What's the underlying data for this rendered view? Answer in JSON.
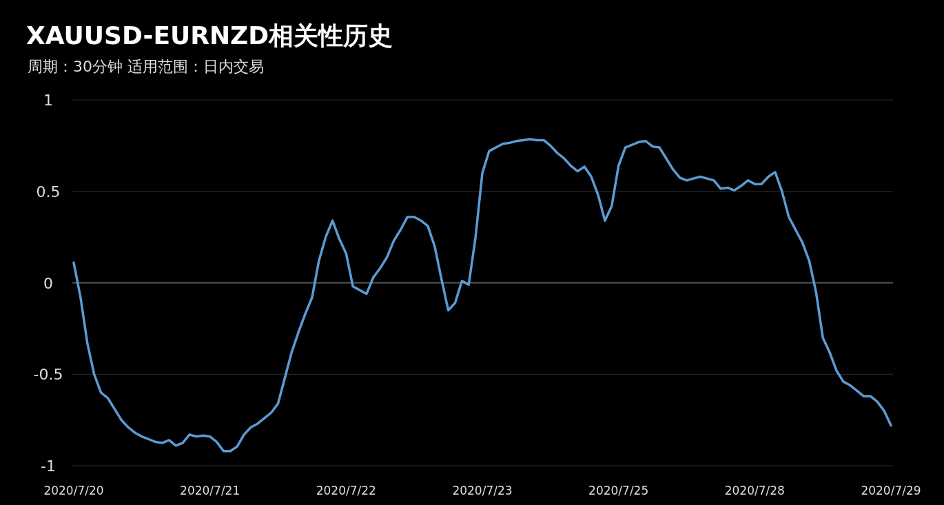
{
  "chart_data": {
    "type": "line",
    "title": "XAUUSD-EURNZD相关性历史",
    "subtitle": "周期：30分钟  适用范围：日内交易",
    "categories": [
      "2020/7/20",
      null,
      null,
      null,
      null,
      null,
      null,
      null,
      null,
      null,
      null,
      null,
      null,
      null,
      null,
      null,
      null,
      null,
      null,
      null,
      "2020/7/21",
      null,
      null,
      null,
      null,
      null,
      null,
      null,
      null,
      null,
      null,
      null,
      null,
      null,
      null,
      null,
      null,
      null,
      null,
      null,
      "2020/7/22",
      null,
      null,
      null,
      null,
      null,
      null,
      null,
      null,
      null,
      null,
      null,
      null,
      null,
      null,
      null,
      null,
      null,
      null,
      null,
      "2020/7/23",
      null,
      null,
      null,
      null,
      null,
      null,
      null,
      null,
      null,
      null,
      null,
      null,
      null,
      null,
      null,
      null,
      null,
      null,
      null,
      "2020/7/25",
      null,
      null,
      null,
      null,
      null,
      null,
      null,
      null,
      null,
      null,
      null,
      null,
      null,
      null,
      null,
      null,
      null,
      null,
      null,
      "2020/7/28",
      null,
      null,
      null,
      null,
      null,
      null,
      null,
      null,
      null,
      null,
      null,
      null,
      null,
      null,
      null,
      null,
      null,
      null,
      null,
      "2020/7/29"
    ],
    "series": [
      {
        "color": "#5b9bd5",
        "values": [
          0.11,
          -0.08,
          -0.33,
          -0.5,
          -0.6,
          -0.63,
          -0.69,
          -0.75,
          -0.79,
          -0.82,
          -0.84,
          -0.855,
          -0.87,
          -0.875,
          -0.86,
          -0.89,
          -0.875,
          -0.83,
          -0.84,
          -0.835,
          -0.84,
          -0.87,
          -0.92,
          -0.92,
          -0.895,
          -0.83,
          -0.79,
          -0.77,
          -0.74,
          -0.71,
          -0.66,
          -0.52,
          -0.38,
          -0.27,
          -0.17,
          -0.08,
          0.12,
          0.25,
          0.34,
          0.24,
          0.16,
          -0.02,
          -0.04,
          -0.06,
          0.03,
          0.08,
          0.14,
          0.23,
          0.29,
          0.36,
          0.36,
          0.34,
          0.31,
          0.2,
          0.02,
          -0.15,
          -0.11,
          0.01,
          -0.01,
          0.25,
          0.6,
          0.72,
          0.74,
          0.76,
          0.765,
          0.775,
          0.78,
          0.785,
          0.78,
          0.78,
          0.75,
          0.71,
          0.68,
          0.64,
          0.61,
          0.635,
          0.58,
          0.48,
          0.34,
          0.42,
          0.64,
          0.74,
          0.755,
          0.77,
          0.775,
          0.745,
          0.74,
          0.68,
          0.62,
          0.575,
          0.56,
          0.57,
          0.58,
          0.57,
          0.56,
          0.515,
          0.52,
          0.505,
          0.53,
          0.56,
          0.54,
          0.54,
          0.58,
          0.605,
          0.5,
          0.36,
          0.29,
          0.22,
          0.12,
          -0.05,
          -0.3,
          -0.38,
          -0.48,
          -0.54,
          -0.56,
          -0.59,
          -0.62,
          -0.62,
          -0.65,
          -0.7,
          -0.78
        ]
      }
    ],
    "ylim": [
      -1,
      1
    ],
    "yticks": [
      -1,
      {
        "value": -0.5,
        "label": "-0.5"
      },
      0,
      0.5,
      1
    ],
    "grid": "y",
    "marker": "none",
    "line_style": "solid",
    "ref_lines": [
      {
        "axis": "y",
        "value": 0,
        "color": "#5a5a5a"
      }
    ]
  }
}
